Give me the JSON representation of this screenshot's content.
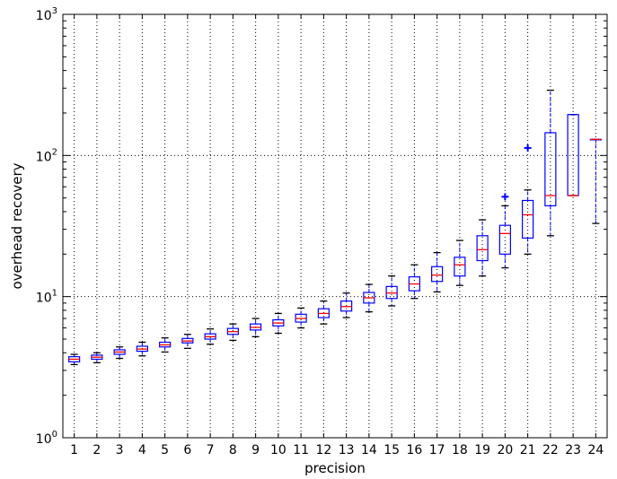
{
  "chart_data": {
    "type": "box",
    "title": "",
    "xlabel": "precision",
    "ylabel": "overhead recovery",
    "yscale": "log",
    "ylim": [
      1,
      1000
    ],
    "xlim": [
      0.5,
      24.5
    ],
    "grid": true,
    "y_ticks": [
      {
        "value": 1,
        "base": "10",
        "exp": "0"
      },
      {
        "value": 10,
        "base": "10",
        "exp": "1"
      },
      {
        "value": 100,
        "base": "10",
        "exp": "2"
      },
      {
        "value": 1000,
        "base": "10",
        "exp": "3"
      }
    ],
    "categories": [
      "1",
      "2",
      "3",
      "4",
      "5",
      "6",
      "7",
      "8",
      "9",
      "10",
      "11",
      "12",
      "13",
      "14",
      "15",
      "16",
      "17",
      "18",
      "19",
      "20",
      "21",
      "22",
      "23",
      "24"
    ],
    "boxes": [
      {
        "x": 1,
        "whislo": 3.3,
        "q1": 3.45,
        "med": 3.6,
        "q3": 3.75,
        "whishi": 3.9,
        "fliers": []
      },
      {
        "x": 2,
        "whislo": 3.4,
        "q1": 3.6,
        "med": 3.72,
        "q3": 3.85,
        "whishi": 4.0,
        "fliers": []
      },
      {
        "x": 3,
        "whislo": 3.65,
        "q1": 3.9,
        "med": 4.05,
        "q3": 4.2,
        "whishi": 4.4,
        "fliers": []
      },
      {
        "x": 4,
        "whislo": 3.8,
        "q1": 4.1,
        "med": 4.25,
        "q3": 4.45,
        "whishi": 4.75,
        "fliers": []
      },
      {
        "x": 5,
        "whislo": 4.05,
        "q1": 4.4,
        "med": 4.55,
        "q3": 4.75,
        "whishi": 5.1,
        "fliers": []
      },
      {
        "x": 6,
        "whislo": 4.3,
        "q1": 4.7,
        "med": 4.85,
        "q3": 5.05,
        "whishi": 5.4,
        "fliers": []
      },
      {
        "x": 7,
        "whislo": 4.6,
        "q1": 5.0,
        "med": 5.2,
        "q3": 5.45,
        "whishi": 5.9,
        "fliers": []
      },
      {
        "x": 8,
        "whislo": 4.9,
        "q1": 5.4,
        "med": 5.65,
        "q3": 5.95,
        "whishi": 6.4,
        "fliers": []
      },
      {
        "x": 9,
        "whislo": 5.2,
        "q1": 5.8,
        "med": 6.05,
        "q3": 6.4,
        "whishi": 7.0,
        "fliers": []
      },
      {
        "x": 10,
        "whislo": 5.5,
        "q1": 6.2,
        "med": 6.5,
        "q3": 6.85,
        "whishi": 7.6,
        "fliers": []
      },
      {
        "x": 11,
        "whislo": 6.0,
        "q1": 6.6,
        "med": 7.0,
        "q3": 7.5,
        "whishi": 8.3,
        "fliers": []
      },
      {
        "x": 12,
        "whislo": 6.4,
        "q1": 7.1,
        "med": 7.6,
        "q3": 8.2,
        "whishi": 9.3,
        "fliers": []
      },
      {
        "x": 13,
        "whislo": 7.1,
        "q1": 7.9,
        "med": 8.5,
        "q3": 9.3,
        "whishi": 10.6,
        "fliers": []
      },
      {
        "x": 14,
        "whislo": 7.8,
        "q1": 9.0,
        "med": 9.8,
        "q3": 10.7,
        "whishi": 12.2,
        "fliers": []
      },
      {
        "x": 15,
        "whislo": 8.6,
        "q1": 9.7,
        "med": 10.6,
        "q3": 11.8,
        "whishi": 14.0,
        "fliers": []
      },
      {
        "x": 16,
        "whislo": 9.7,
        "q1": 11.0,
        "med": 12.3,
        "q3": 13.8,
        "whishi": 16.8,
        "fliers": []
      },
      {
        "x": 17,
        "whislo": 10.8,
        "q1": 12.8,
        "med": 14.2,
        "q3": 16.3,
        "whishi": 20.5,
        "fliers": []
      },
      {
        "x": 18,
        "whislo": 12.0,
        "q1": 14.0,
        "med": 16.8,
        "q3": 19.0,
        "whishi": 25.0,
        "fliers": []
      },
      {
        "x": 19,
        "whislo": 14.0,
        "q1": 18.0,
        "med": 21.5,
        "q3": 27.0,
        "whishi": 35.0,
        "fliers": []
      },
      {
        "x": 20,
        "whislo": 16.0,
        "q1": 20.0,
        "med": 28.0,
        "q3": 32.0,
        "whishi": 44.0,
        "fliers": [
          51
        ]
      },
      {
        "x": 21,
        "whislo": 20.0,
        "q1": 26.0,
        "med": 38.0,
        "q3": 48.0,
        "whishi": 57.0,
        "fliers": [
          113
        ]
      },
      {
        "x": 22,
        "whislo": 27.0,
        "q1": 44.0,
        "med": 52.0,
        "q3": 145.0,
        "whishi": 290.0,
        "fliers": []
      },
      {
        "x": 23,
        "whislo": 52.0,
        "q1": 52.0,
        "med": 52.0,
        "q3": 195.0,
        "whishi": 195.0,
        "fliers": []
      },
      {
        "x": 24,
        "whislo": 33.0,
        "q1": 130.0,
        "med": 130.0,
        "q3": 130.0,
        "whishi": 130.0,
        "fliers": []
      }
    ],
    "colors": {
      "box": "#0000ff",
      "median": "#ff0000",
      "whisker_cap": "#000000",
      "flier": "#0000ff",
      "grid": "#000000"
    }
  }
}
